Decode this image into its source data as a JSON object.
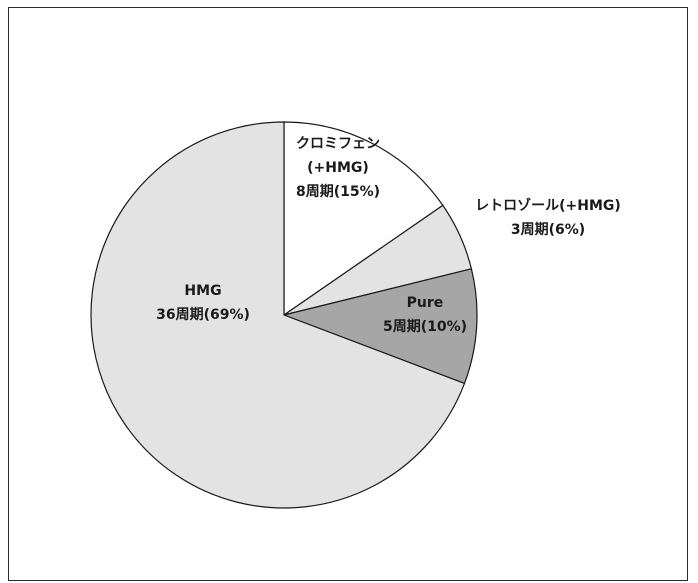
{
  "chart_data": {
    "type": "pie",
    "title": "",
    "start_angle_deg": 0,
    "direction": "clockwise",
    "slices": [
      {
        "label": "クロミフェン(+HMG)",
        "label_lines": [
          "クロミフェン",
          "(+HMG)",
          "8周期(15%)"
        ],
        "cycles": 8,
        "percent": 15,
        "color": "#ffffff"
      },
      {
        "label": "レトロゾール(+HMG)",
        "label_lines": [
          "レトロゾール(+HMG)",
          "3周期(6%)"
        ],
        "cycles": 3,
        "percent": 6,
        "color": "#e3e3e3"
      },
      {
        "label": "Pure",
        "label_lines": [
          "Pure",
          "5周期(10%)"
        ],
        "cycles": 5,
        "percent": 10,
        "color": "#a6a6a6"
      },
      {
        "label": "HMG",
        "label_lines": [
          "HMG",
          "36周期(69%)"
        ],
        "cycles": 36,
        "percent": 69,
        "color": "#e3e3e3"
      }
    ],
    "stroke_color": "#1a1a1a"
  }
}
